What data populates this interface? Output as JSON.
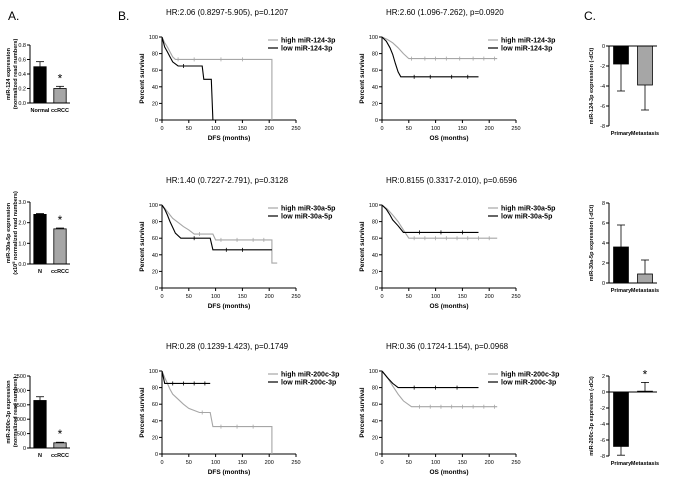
{
  "panel_labels": {
    "a": "A.",
    "b": "B.",
    "c": "C."
  },
  "chart_data": [
    {
      "id": "a1",
      "type": "bar",
      "panel": "A",
      "categories": [
        "Normal",
        "ccRCC"
      ],
      "values": [
        0.5,
        0.2
      ],
      "errors": [
        0.07,
        0.03
      ],
      "colors": [
        "#000000",
        "#a6a6a6"
      ],
      "ylim": [
        0,
        0.8
      ],
      "yticks": [
        "0.0",
        "0.2",
        "0.4",
        "0.6",
        "0.8"
      ],
      "ylabel": "miR-124 expression",
      "ylabel2": "(normalized read numbers)",
      "annotation": "*"
    },
    {
      "id": "a2",
      "type": "bar",
      "panel": "A",
      "categories": [
        "N",
        "ccRCC"
      ],
      "values": [
        2.4,
        1.7
      ],
      "errors": [
        0.04,
        0.04
      ],
      "colors": [
        "#000000",
        "#a6a6a6"
      ],
      "ylim": [
        0,
        3.0
      ],
      "yticks": [
        "0.0",
        "1.0",
        "2.0",
        "3.0"
      ],
      "ylabel": "miR-30a-5p expression",
      "ylabel2_pre": "(x10",
      "ylabel2_sup": "5",
      "ylabel2_post": " normalized read numbers)",
      "annotation": "*"
    },
    {
      "id": "a3",
      "type": "bar",
      "panel": "A",
      "categories": [
        "N",
        "ccRCC"
      ],
      "values": [
        1650,
        180
      ],
      "errors": [
        130,
        20
      ],
      "colors": [
        "#000000",
        "#a6a6a6"
      ],
      "ylim": [
        0,
        2500
      ],
      "yticks": [
        "0",
        "500",
        "1000",
        "1500",
        "2000",
        "2500"
      ],
      "ylabel": "miR-200c-3p expression",
      "ylabel2": "(normalized read numbers)",
      "annotation": "*"
    },
    {
      "id": "b1",
      "type": "line",
      "subtype": "kaplan-meier",
      "panel": "B",
      "title": "HR:2.06 (0.8297-5.905), p=0.1207",
      "xlabel": "DFS (months)",
      "ylabel": "Percent survival",
      "xlim": [
        0,
        250
      ],
      "ylim": [
        0,
        100
      ],
      "xticks": [
        "0",
        "50",
        "100",
        "150",
        "200",
        "250"
      ],
      "yticks": [
        "0",
        "20",
        "40",
        "60",
        "80",
        "100"
      ],
      "series": [
        {
          "name": "high miR-124-3p",
          "color": "#a6a6a6",
          "censor": [
            [
              30,
              73
            ],
            [
              60,
              73
            ],
            [
              110,
              73
            ],
            [
              150,
              73
            ]
          ],
          "points": [
            [
              0,
              100
            ],
            [
              5,
              93
            ],
            [
              10,
              88
            ],
            [
              15,
              82
            ],
            [
              20,
              76
            ],
            [
              25,
              73
            ],
            [
              205,
              73
            ],
            [
              205,
              0
            ]
          ]
        },
        {
          "name": "low miR-124-3p",
          "color": "#000000",
          "censor": [
            [
              40,
              65
            ]
          ],
          "points": [
            [
              0,
              100
            ],
            [
              5,
              88
            ],
            [
              10,
              82
            ],
            [
              15,
              76
            ],
            [
              20,
              70
            ],
            [
              30,
              65
            ],
            [
              75,
              65
            ],
            [
              78,
              49
            ],
            [
              92,
              49
            ],
            [
              95,
              0
            ]
          ]
        }
      ]
    },
    {
      "id": "b2",
      "type": "line",
      "subtype": "kaplan-meier",
      "panel": "B",
      "title": "HR:2.60 (1.096-7.262), p=0.0920",
      "xlabel": "OS (months)",
      "ylabel": "Percent survival",
      "xlim": [
        0,
        250
      ],
      "ylim": [
        0,
        100
      ],
      "xticks": [
        "0",
        "50",
        "100",
        "150",
        "200",
        "250"
      ],
      "yticks": [
        "0",
        "20",
        "40",
        "60",
        "80",
        "100"
      ],
      "series": [
        {
          "name": "high miR-124-3p",
          "color": "#a6a6a6",
          "censor": [
            [
              55,
              74
            ],
            [
              80,
              74
            ],
            [
              100,
              74
            ],
            [
              120,
              74
            ],
            [
              145,
              74
            ],
            [
              170,
              74
            ],
            [
              190,
              74
            ],
            [
              210,
              74
            ]
          ],
          "points": [
            [
              0,
              100
            ],
            [
              10,
              97
            ],
            [
              20,
              93
            ],
            [
              30,
              87
            ],
            [
              40,
              80
            ],
            [
              50,
              74
            ],
            [
              215,
              74
            ]
          ]
        },
        {
          "name": "low miR-124-3p",
          "color": "#000000",
          "censor": [
            [
              60,
              52
            ],
            [
              90,
              52
            ],
            [
              130,
              52
            ],
            [
              160,
              52
            ]
          ],
          "points": [
            [
              0,
              100
            ],
            [
              8,
              95
            ],
            [
              15,
              87
            ],
            [
              20,
              79
            ],
            [
              25,
              68
            ],
            [
              30,
              58
            ],
            [
              35,
              52
            ],
            [
              180,
              52
            ]
          ]
        }
      ]
    },
    {
      "id": "b3",
      "type": "line",
      "subtype": "kaplan-meier",
      "panel": "B",
      "title": "HR:1.40 (0.7227-2.791), p=0.3128",
      "xlabel": "DFS (months)",
      "ylabel": "Percent survival",
      "xlim": [
        0,
        250
      ],
      "ylim": [
        0,
        100
      ],
      "xticks": [
        "0",
        "50",
        "100",
        "150",
        "200",
        "250"
      ],
      "yticks": [
        "0",
        "20",
        "40",
        "60",
        "80",
        "100"
      ],
      "series": [
        {
          "name": "high miR-30a-5p",
          "color": "#a6a6a6",
          "censor": [
            [
              70,
              65
            ],
            [
              110,
              58
            ],
            [
              140,
              58
            ],
            [
              170,
              58
            ],
            [
              190,
              58
            ]
          ],
          "points": [
            [
              0,
              100
            ],
            [
              5,
              96
            ],
            [
              10,
              92
            ],
            [
              15,
              88
            ],
            [
              20,
              84
            ],
            [
              30,
              79
            ],
            [
              40,
              74
            ],
            [
              50,
              70
            ],
            [
              60,
              65
            ],
            [
              95,
              65
            ],
            [
              100,
              58
            ],
            [
              205,
              58
            ],
            [
              205,
              30
            ],
            [
              215,
              30
            ]
          ]
        },
        {
          "name": "low miR-30a-5p",
          "color": "#000000",
          "censor": [
            [
              60,
              60
            ],
            [
              120,
              46
            ],
            [
              150,
              46
            ]
          ],
          "points": [
            [
              0,
              100
            ],
            [
              5,
              95
            ],
            [
              10,
              88
            ],
            [
              15,
              80
            ],
            [
              20,
              73
            ],
            [
              25,
              66
            ],
            [
              35,
              60
            ],
            [
              90,
              60
            ],
            [
              95,
              46
            ],
            [
              205,
              46
            ]
          ]
        }
      ]
    },
    {
      "id": "b4",
      "type": "line",
      "subtype": "kaplan-meier",
      "panel": "B",
      "title": "HR:0.8155 (0.3317-2.010), p=0.6596",
      "xlabel": "OS (months)",
      "ylabel": "Percent survival",
      "xlim": [
        0,
        250
      ],
      "ylim": [
        0,
        100
      ],
      "xticks": [
        "0",
        "50",
        "100",
        "150",
        "200",
        "250"
      ],
      "yticks": [
        "0",
        "20",
        "40",
        "60",
        "80",
        "100"
      ],
      "series": [
        {
          "name": "high miR-30a-5p",
          "color": "#a6a6a6",
          "censor": [
            [
              60,
              60
            ],
            [
              80,
              60
            ],
            [
              100,
              60
            ],
            [
              120,
              60
            ],
            [
              140,
              60
            ],
            [
              160,
              60
            ],
            [
              180,
              60
            ],
            [
              200,
              60
            ]
          ],
          "points": [
            [
              0,
              100
            ],
            [
              10,
              95
            ],
            [
              20,
              88
            ],
            [
              30,
              80
            ],
            [
              40,
              70
            ],
            [
              50,
              60
            ],
            [
              215,
              60
            ]
          ]
        },
        {
          "name": "low miR-30a-5p",
          "color": "#000000",
          "censor": [
            [
              70,
              67
            ],
            [
              110,
              67
            ],
            [
              150,
              67
            ]
          ],
          "points": [
            [
              0,
              100
            ],
            [
              8,
              95
            ],
            [
              15,
              88
            ],
            [
              20,
              82
            ],
            [
              30,
              75
            ],
            [
              40,
              67
            ],
            [
              180,
              67
            ]
          ]
        }
      ]
    },
    {
      "id": "b5",
      "type": "line",
      "subtype": "kaplan-meier",
      "panel": "B",
      "title": "HR:0.28 (0.1239-1.423), p=0.1749",
      "xlabel": "DFS (months)",
      "ylabel": "Percent survival",
      "xlim": [
        0,
        250
      ],
      "ylim": [
        0,
        100
      ],
      "xticks": [
        "0",
        "50",
        "100",
        "150",
        "200",
        "250"
      ],
      "yticks": [
        "0",
        "20",
        "40",
        "60",
        "80",
        "100"
      ],
      "series": [
        {
          "name": "high miR-200c-3p",
          "color": "#a6a6a6",
          "censor": [
            [
              75,
              50
            ],
            [
              110,
              33
            ],
            [
              140,
              33
            ],
            [
              170,
              33
            ]
          ],
          "points": [
            [
              0,
              100
            ],
            [
              5,
              92
            ],
            [
              10,
              85
            ],
            [
              15,
              78
            ],
            [
              20,
              72
            ],
            [
              30,
              66
            ],
            [
              40,
              60
            ],
            [
              50,
              55
            ],
            [
              70,
              50
            ],
            [
              90,
              50
            ],
            [
              95,
              33
            ],
            [
              205,
              33
            ],
            [
              205,
              0
            ]
          ]
        },
        {
          "name": "low miR-200c-3p",
          "color": "#000000",
          "censor": [
            [
              20,
              85
            ],
            [
              40,
              85
            ],
            [
              60,
              85
            ],
            [
              80,
              85
            ]
          ],
          "points": [
            [
              0,
              100
            ],
            [
              5,
              85
            ],
            [
              90,
              85
            ]
          ]
        }
      ]
    },
    {
      "id": "b6",
      "type": "line",
      "subtype": "kaplan-meier",
      "panel": "B",
      "title": "HR:0.36 (0.1724-1.154), p=0.0968",
      "xlabel": "OS (months)",
      "ylabel": "Percent survival",
      "xlim": [
        0,
        250
      ],
      "ylim": [
        0,
        100
      ],
      "xticks": [
        "0",
        "50",
        "100",
        "150",
        "200",
        "250"
      ],
      "yticks": [
        "0",
        "20",
        "40",
        "60",
        "80",
        "100"
      ],
      "series": [
        {
          "name": "high miR-200c-3p",
          "color": "#a6a6a6",
          "censor": [
            [
              70,
              57
            ],
            [
              90,
              57
            ],
            [
              110,
              57
            ],
            [
              130,
              57
            ],
            [
              150,
              57
            ],
            [
              170,
              57
            ],
            [
              190,
              57
            ],
            [
              210,
              57
            ]
          ],
          "points": [
            [
              0,
              100
            ],
            [
              10,
              92
            ],
            [
              20,
              82
            ],
            [
              30,
              72
            ],
            [
              40,
              64
            ],
            [
              55,
              57
            ],
            [
              215,
              57
            ]
          ]
        },
        {
          "name": "low miR-200c-3p",
          "color": "#000000",
          "censor": [
            [
              60,
              80
            ],
            [
              100,
              80
            ],
            [
              140,
              80
            ]
          ],
          "points": [
            [
              0,
              100
            ],
            [
              10,
              92
            ],
            [
              20,
              85
            ],
            [
              30,
              80
            ],
            [
              180,
              80
            ]
          ]
        }
      ]
    },
    {
      "id": "c1",
      "type": "bar",
      "panel": "C",
      "categories": [
        "Primary",
        "Metastasis"
      ],
      "values": [
        -1.8,
        -3.9
      ],
      "errors": [
        2.7,
        2.5
      ],
      "colors": [
        "#000000",
        "#a6a6a6"
      ],
      "ylim": [
        -8,
        0
      ],
      "yticks": [
        "-8",
        "-6",
        "-4",
        "-2",
        "0"
      ],
      "ylabel": "miR-124-3p expression (-dCt)"
    },
    {
      "id": "c2",
      "type": "bar",
      "panel": "C",
      "categories": [
        "Primary",
        "Metastasis"
      ],
      "values": [
        3.6,
        0.9
      ],
      "errors": [
        2.2,
        1.4
      ],
      "colors": [
        "#000000",
        "#a6a6a6"
      ],
      "ylim": [
        0,
        8
      ],
      "yticks": [
        "0",
        "2",
        "4",
        "6",
        "8"
      ],
      "ylabel": "miR-30a-5p expression (-dCt)"
    },
    {
      "id": "c3",
      "type": "bar",
      "panel": "C",
      "categories": [
        "Primary",
        "Metastasis"
      ],
      "values": [
        -6.8,
        0.1
      ],
      "errors": [
        1.1,
        1.1
      ],
      "colors": [
        "#000000",
        "#a6a6a6"
      ],
      "ylim": [
        -8,
        2
      ],
      "yticks": [
        "-8",
        "-6",
        "-4",
        "-2",
        "0",
        "2"
      ],
      "ylabel": "miR-200c-3p expression (-dCt)",
      "annotation": "*"
    }
  ]
}
